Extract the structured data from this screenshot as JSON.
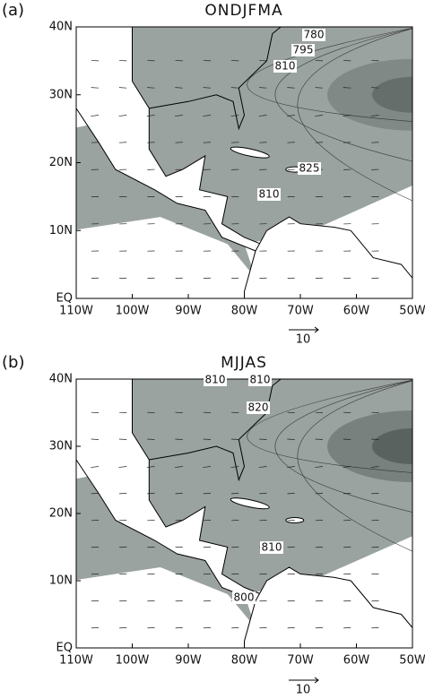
{
  "panels": [
    {
      "label": "(a)",
      "title": "ONDJFMA",
      "xlim": [
        -110,
        -50
      ],
      "ylim": [
        0,
        40
      ],
      "xticks": [
        {
          "value": -110,
          "label": "110W"
        },
        {
          "value": -100,
          "label": "100W"
        },
        {
          "value": -90,
          "label": "90W"
        },
        {
          "value": -80,
          "label": "80W"
        },
        {
          "value": -70,
          "label": "70W"
        },
        {
          "value": -60,
          "label": "60W"
        },
        {
          "value": -50,
          "label": "50W"
        }
      ],
      "yticks": [
        {
          "value": 0,
          "label": "EQ"
        },
        {
          "value": 10,
          "label": "10N"
        },
        {
          "value": 20,
          "label": "20N"
        },
        {
          "value": 30,
          "label": "30N"
        },
        {
          "value": 40,
          "label": "40N"
        }
      ],
      "contour_labels": [
        780,
        795,
        810,
        825,
        810
      ],
      "reference_vector": 10
    },
    {
      "label": "(b)",
      "title": "MJJAS",
      "xlim": [
        -110,
        -50
      ],
      "ylim": [
        0,
        40
      ],
      "xticks": [
        {
          "value": -110,
          "label": "110W"
        },
        {
          "value": -100,
          "label": "100W"
        },
        {
          "value": -90,
          "label": "90W"
        },
        {
          "value": -80,
          "label": "80W"
        },
        {
          "value": -70,
          "label": "70W"
        },
        {
          "value": -60,
          "label": "60W"
        },
        {
          "value": -50,
          "label": "50W"
        }
      ],
      "yticks": [
        {
          "value": 0,
          "label": "EQ"
        },
        {
          "value": 10,
          "label": "10N"
        },
        {
          "value": 20,
          "label": "20N"
        },
        {
          "value": 30,
          "label": "30N"
        },
        {
          "value": 40,
          "label": "40N"
        }
      ],
      "contour_labels": [
        810,
        810,
        820,
        810,
        800
      ],
      "reference_vector": 10
    }
  ]
}
